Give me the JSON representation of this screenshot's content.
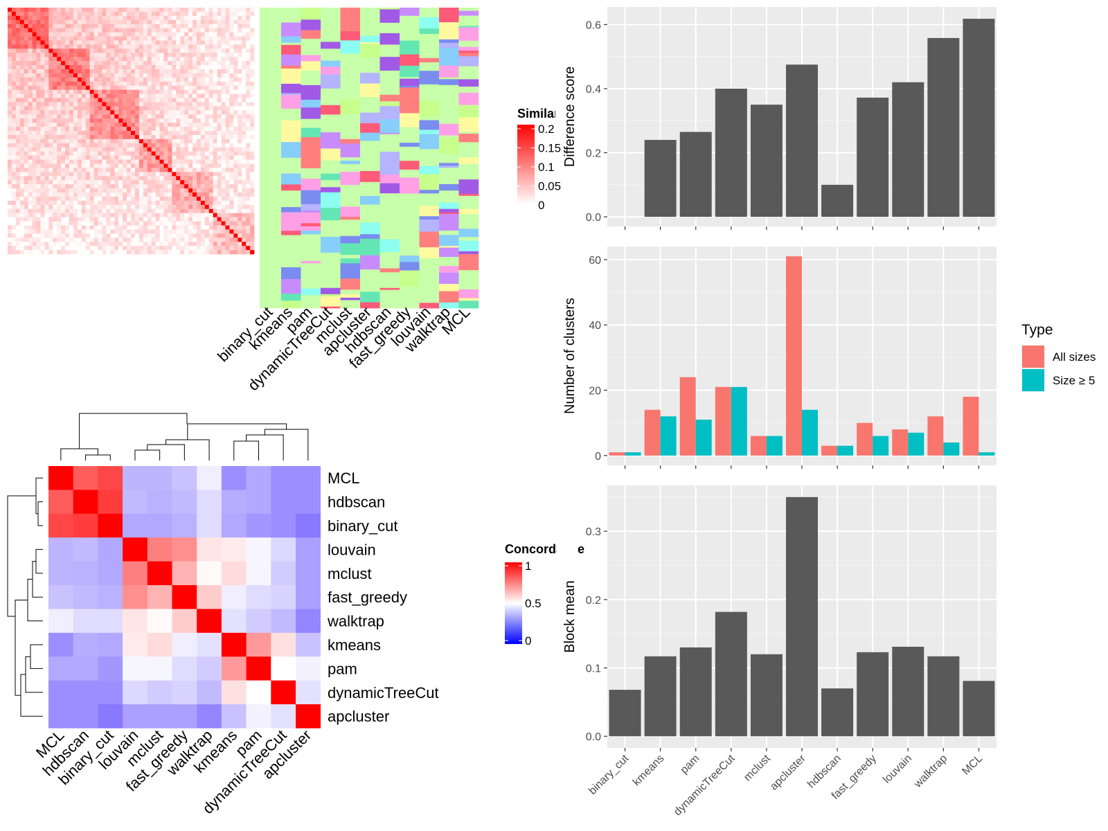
{
  "similarity_panel": {
    "legend_title": "Similarity",
    "legend_ticks": [
      "0.2",
      "0.15",
      "0.1",
      "0.05",
      "0"
    ],
    "colors": [
      "#ffffff",
      "#ff0000"
    ],
    "method_labels": [
      "binary_cut",
      "kmeans",
      "pam",
      "dynamicTreeCut",
      "mclust",
      "apcluster",
      "hdbscan",
      "fast_greedy",
      "louvain",
      "walktrap",
      "MCL"
    ],
    "cluster_background": "#c7ffaa"
  },
  "concordance_panel": {
    "legend_title": "Concordance",
    "legend_ticks": [
      "1",
      "0.5",
      "0"
    ],
    "colors": {
      "low": "#0000ff",
      "mid": "#ffffff",
      "high": "#ff0000"
    },
    "order": [
      "MCL",
      "hdbscan",
      "binary_cut",
      "louvain",
      "mclust",
      "fast_greedy",
      "walktrap",
      "kmeans",
      "pam",
      "dynamicTreeCut",
      "apcluster"
    ],
    "matrix": [
      [
        1.0,
        0.82,
        0.86,
        0.33,
        0.33,
        0.36,
        0.46,
        0.24,
        0.3,
        0.24,
        0.24
      ],
      [
        0.82,
        1.0,
        0.88,
        0.34,
        0.32,
        0.34,
        0.42,
        0.31,
        0.3,
        0.24,
        0.24
      ],
      [
        0.86,
        0.88,
        1.0,
        0.3,
        0.3,
        0.32,
        0.42,
        0.3,
        0.26,
        0.24,
        0.19
      ],
      [
        0.33,
        0.34,
        0.3,
        1.0,
        0.75,
        0.72,
        0.55,
        0.54,
        0.48,
        0.41,
        0.28
      ],
      [
        0.33,
        0.32,
        0.3,
        0.75,
        1.0,
        0.65,
        0.51,
        0.57,
        0.48,
        0.38,
        0.28
      ],
      [
        0.36,
        0.34,
        0.32,
        0.72,
        0.65,
        1.0,
        0.6,
        0.46,
        0.42,
        0.4,
        0.28
      ],
      [
        0.46,
        0.42,
        0.42,
        0.55,
        0.51,
        0.6,
        1.0,
        0.43,
        0.38,
        0.34,
        0.22
      ],
      [
        0.24,
        0.31,
        0.3,
        0.54,
        0.57,
        0.46,
        0.43,
        1.0,
        0.7,
        0.56,
        0.36
      ],
      [
        0.3,
        0.3,
        0.26,
        0.48,
        0.48,
        0.42,
        0.38,
        0.7,
        1.0,
        0.5,
        0.47
      ],
      [
        0.24,
        0.24,
        0.24,
        0.41,
        0.38,
        0.4,
        0.34,
        0.56,
        0.5,
        1.0,
        0.43
      ],
      [
        0.24,
        0.24,
        0.19,
        0.28,
        0.28,
        0.28,
        0.22,
        0.36,
        0.47,
        0.43,
        1.0
      ]
    ]
  },
  "chart_data": [
    {
      "type": "bar",
      "ylabel": "Difference score",
      "categories": [
        "binary_cut",
        "kmeans",
        "pam",
        "dynamicTreeCut",
        "mclust",
        "apcluster",
        "hdbscan",
        "fast_greedy",
        "louvain",
        "walktrap",
        "MCL"
      ],
      "values": [
        0.0,
        0.24,
        0.265,
        0.4,
        0.35,
        0.475,
        0.1,
        0.372,
        0.42,
        0.558,
        0.618
      ],
      "ylim": [
        -0.03,
        0.655
      ],
      "yticks": [
        0.0,
        0.2,
        0.4,
        0.6
      ],
      "ytick_labels": [
        "0.0",
        "0.2",
        "0.4",
        "0.6"
      ],
      "color": "#595959",
      "background": "#ebebeb",
      "grid": true
    },
    {
      "type": "bar",
      "ylabel": "Number of clusters",
      "categories": [
        "binary_cut",
        "kmeans",
        "pam",
        "dynamicTreeCut",
        "mclust",
        "apcluster",
        "hdbscan",
        "fast_greedy",
        "louvain",
        "walktrap",
        "MCL"
      ],
      "series": [
        {
          "name": "All sizes",
          "color": "#f8766d",
          "values": [
            1,
            14,
            24,
            21,
            6,
            61,
            3,
            10,
            8,
            12,
            18
          ]
        },
        {
          "name": "Size ≥ 5",
          "color": "#00bfc4",
          "values": [
            1,
            12,
            11,
            21,
            6,
            14,
            3,
            6,
            7,
            4,
            1
          ]
        }
      ],
      "ylim": [
        -3,
        64
      ],
      "yticks": [
        0,
        20,
        40,
        60
      ],
      "ytick_labels": [
        "0",
        "20",
        "40",
        "60"
      ],
      "legend": {
        "title": "Type",
        "position": "right"
      },
      "background": "#ebebeb",
      "grid": true
    },
    {
      "type": "bar",
      "ylabel": "Block mean",
      "categories": [
        "binary_cut",
        "kmeans",
        "pam",
        "dynamicTreeCut",
        "mclust",
        "apcluster",
        "hdbscan",
        "fast_greedy",
        "louvain",
        "walktrap",
        "MCL"
      ],
      "values": [
        0.068,
        0.117,
        0.13,
        0.182,
        0.12,
        0.35,
        0.07,
        0.123,
        0.131,
        0.117,
        0.081
      ],
      "ylim": [
        -0.017,
        0.367
      ],
      "yticks": [
        0.0,
        0.1,
        0.2,
        0.3
      ],
      "ytick_labels": [
        "0.0",
        "0.1",
        "0.2",
        "0.3"
      ],
      "color": "#595959",
      "background": "#ebebeb",
      "grid": true
    }
  ]
}
